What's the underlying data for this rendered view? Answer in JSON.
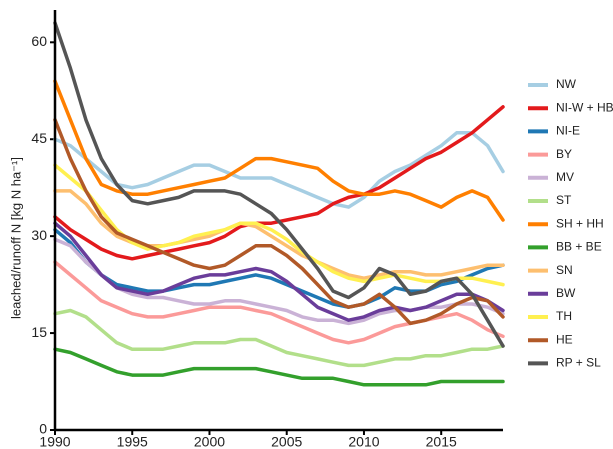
{
  "chart_data": {
    "type": "line",
    "y_label": "leached/runoff N [kg N ha⁻¹]",
    "x": [
      1990,
      1991,
      1992,
      1993,
      1994,
      1995,
      1996,
      1997,
      1998,
      1999,
      2000,
      2001,
      2002,
      2003,
      2004,
      2005,
      2006,
      2007,
      2008,
      2009,
      2010,
      2011,
      2012,
      2013,
      2014,
      2015,
      2016,
      2017,
      2018,
      2019
    ],
    "xlim": [
      1990,
      2019
    ],
    "xticks": [
      1990,
      1995,
      2000,
      2005,
      2010,
      2015
    ],
    "ylim": [
      0,
      65
    ],
    "yticks": [
      0,
      15,
      30,
      45,
      60
    ],
    "grid": false,
    "legend": "right",
    "series": [
      {
        "name": "NW",
        "color": "#a6cee3",
        "values": [
          45,
          44,
          42,
          40,
          38,
          37.5,
          38,
          39,
          40,
          41,
          41,
          40,
          39,
          39,
          39,
          38,
          37,
          36,
          35,
          34.5,
          36,
          38.5,
          40,
          41,
          42.5,
          44,
          46,
          46,
          44,
          40
        ]
      },
      {
        "name": "NI-W + HB",
        "color": "#e31a1c",
        "values": [
          33,
          31,
          29.5,
          28,
          27,
          26.5,
          27,
          27.5,
          28,
          28.5,
          29,
          30,
          31.5,
          32,
          32,
          32.5,
          33,
          33.5,
          35,
          36,
          36.5,
          37.5,
          39,
          40.5,
          42,
          43,
          44.5,
          46,
          48,
          50
        ]
      },
      {
        "name": "NI-E",
        "color": "#1f78b4",
        "values": [
          31,
          29,
          26,
          24,
          22.5,
          22,
          21.5,
          21.5,
          22,
          22.5,
          22.5,
          23,
          23.5,
          24,
          23.5,
          22.5,
          21.5,
          20.5,
          19.5,
          19,
          19.5,
          20.5,
          22,
          21.5,
          21.5,
          22.5,
          23,
          24,
          25,
          25.5
        ]
      },
      {
        "name": "BY",
        "color": "#fb9a99",
        "values": [
          26,
          24,
          22,
          20,
          19,
          18,
          17.5,
          17.5,
          18,
          18.5,
          19,
          19,
          19,
          18.5,
          18,
          17,
          16,
          15,
          14,
          13.5,
          14,
          15,
          16,
          16.5,
          17,
          17.5,
          18,
          17,
          15.5,
          14.5
        ]
      },
      {
        "name": "MV",
        "color": "#cab2d6",
        "values": [
          29.5,
          28.5,
          26,
          24,
          22,
          21,
          20.5,
          20.5,
          20,
          19.5,
          19.5,
          20,
          20,
          19.5,
          19,
          18.5,
          17.5,
          17,
          17,
          16.5,
          17,
          18,
          18.5,
          18.5,
          19,
          19,
          19.5,
          19.5,
          19,
          18
        ]
      },
      {
        "name": "ST",
        "color": "#b2df8a",
        "values": [
          18,
          18.5,
          17.5,
          15.5,
          13.5,
          12.5,
          12.5,
          12.5,
          13,
          13.5,
          13.5,
          13.5,
          14,
          14,
          13,
          12,
          11.5,
          11,
          10.5,
          10,
          10,
          10.5,
          11,
          11,
          11.5,
          11.5,
          12,
          12.5,
          12.5,
          13
        ]
      },
      {
        "name": "SH + HH",
        "color": "#ff7f00",
        "values": [
          54,
          48,
          42,
          38,
          37,
          36.5,
          36.5,
          37,
          37.5,
          38,
          38.5,
          39,
          40.5,
          42,
          42,
          41.5,
          41,
          40.5,
          38.5,
          37,
          36.5,
          36.5,
          37,
          36.5,
          35.5,
          34.5,
          36,
          37,
          36,
          32.5
        ]
      },
      {
        "name": "BB + BE",
        "color": "#33a02c",
        "values": [
          12.5,
          12,
          11,
          10,
          9,
          8.5,
          8.5,
          8.5,
          9,
          9.5,
          9.5,
          9.5,
          9.5,
          9.5,
          9,
          8.5,
          8,
          8,
          8,
          7.5,
          7,
          7,
          7,
          7,
          7,
          7.5,
          7.5,
          7.5,
          7.5,
          7.5
        ]
      },
      {
        "name": "SN",
        "color": "#fdbf6f",
        "values": [
          37,
          37,
          35,
          32,
          30,
          29,
          28.5,
          28.5,
          29,
          29.5,
          30,
          31,
          32,
          31.5,
          30,
          28.5,
          27,
          26,
          25,
          24,
          23.5,
          24,
          24.5,
          24.5,
          24,
          24,
          24.5,
          25,
          25.5,
          25.5
        ]
      },
      {
        "name": "BW",
        "color": "#6a3d9a",
        "values": [
          32,
          30,
          27,
          24,
          22,
          21.5,
          21,
          21.5,
          22.5,
          23.5,
          24,
          24,
          24.5,
          25,
          24.5,
          23,
          21,
          19,
          18,
          17,
          17.5,
          18.5,
          19,
          18.5,
          19,
          20,
          21,
          21,
          20,
          18.5
        ]
      },
      {
        "name": "TH",
        "color": "#fff050",
        "values": [
          41,
          39,
          37,
          34,
          31,
          29,
          28,
          28.5,
          29,
          30,
          30.5,
          31,
          32,
          32,
          31,
          29.5,
          27.5,
          26,
          24.5,
          23.5,
          23,
          23.5,
          24,
          23.5,
          23,
          23,
          23.5,
          23.5,
          23,
          22.5
        ]
      },
      {
        "name": "HE",
        "color": "#b15928",
        "values": [
          48,
          42,
          37,
          33,
          30.5,
          29.5,
          28.5,
          27.5,
          26.5,
          25.5,
          25,
          25.5,
          27,
          28.5,
          28.5,
          27,
          25,
          22.5,
          20,
          19,
          19.5,
          21,
          19,
          16.5,
          17,
          18,
          19.5,
          20.5,
          20,
          17.5
        ]
      },
      {
        "name": "RP + SL",
        "color": "#555555",
        "values": [
          63,
          56,
          48,
          42,
          38,
          35.5,
          35,
          35.5,
          36,
          37,
          37,
          37,
          36.5,
          35,
          33.5,
          31,
          28,
          25,
          21.5,
          20.5,
          22,
          25,
          24,
          21,
          21.5,
          23,
          23.5,
          21,
          17,
          13
        ]
      }
    ]
  }
}
